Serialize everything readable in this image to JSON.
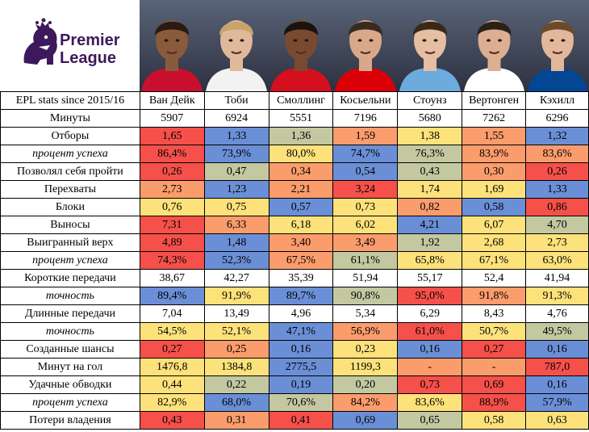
{
  "brand": {
    "line1": "Premier",
    "line2": "League",
    "accent": "#3d195b"
  },
  "title": "EPL stats since 2015/16",
  "players": [
    {
      "name": "Ван Дейк",
      "shirt": "#c8102e",
      "skin": "#8a5a3c",
      "hair": "#2a1a10"
    },
    {
      "name": "Тоби",
      "shirt": "#f2f2f2",
      "skin": "#e0b89a",
      "hair": "#c9a46a"
    },
    {
      "name": "Смоллинг",
      "shirt": "#d40f1e",
      "skin": "#7a4a30",
      "hair": "#1a120c"
    },
    {
      "name": "Косьельни",
      "shirt": "#db0007",
      "skin": "#d9a88a",
      "hair": "#3a2a20"
    },
    {
      "name": "Стоунз",
      "shirt": "#6cabdd",
      "skin": "#e6bea2",
      "hair": "#3a2818"
    },
    {
      "name": "Вертонген",
      "shirt": "#ffffff",
      "skin": "#dcae92",
      "hair": "#2a2018"
    },
    {
      "name": "Кэхилл",
      "shirt": "#034694",
      "skin": "#e3b79b",
      "hair": "#6b4a2a"
    }
  ],
  "colors": {
    "r": "#f5504a",
    "o": "#fb9c6c",
    "y": "#fde27b",
    "g": "#c3c8a1",
    "b": "#6b8fd6",
    "w": "#ffffff",
    "y2": "#f4c86a"
  },
  "rows": [
    {
      "label": "Минуты",
      "italic": false,
      "values": [
        "5907",
        "6924",
        "5551",
        "7196",
        "5680",
        "7262",
        "6296"
      ],
      "colors": [
        "w",
        "w",
        "w",
        "w",
        "w",
        "w",
        "w"
      ]
    },
    {
      "label": "Отборы",
      "italic": false,
      "values": [
        "1,65",
        "1,33",
        "1,36",
        "1,59",
        "1,38",
        "1,55",
        "1,32"
      ],
      "colors": [
        "r",
        "b",
        "g",
        "o",
        "y",
        "o",
        "b"
      ]
    },
    {
      "label": "процент успеха",
      "italic": true,
      "values": [
        "86,4%",
        "73,9%",
        "80,0%",
        "74,7%",
        "76,3%",
        "83,9%",
        "83,6%"
      ],
      "colors": [
        "r",
        "b",
        "y",
        "b",
        "g",
        "o",
        "o"
      ]
    },
    {
      "label": "Позволял себя пройти",
      "italic": false,
      "values": [
        "0,26",
        "0,47",
        "0,34",
        "0,54",
        "0,43",
        "0,30",
        "0,26"
      ],
      "colors": [
        "r",
        "g",
        "o",
        "b",
        "g",
        "o",
        "r"
      ]
    },
    {
      "label": "Перехваты",
      "italic": false,
      "values": [
        "2,73",
        "1,23",
        "2,21",
        "3,24",
        "1,74",
        "1,69",
        "1,33"
      ],
      "colors": [
        "o",
        "b",
        "o",
        "r",
        "y",
        "y",
        "b"
      ]
    },
    {
      "label": "Блоки",
      "italic": false,
      "values": [
        "0,76",
        "0,75",
        "0,57",
        "0,73",
        "0,82",
        "0,58",
        "0,86"
      ],
      "colors": [
        "y",
        "y",
        "b",
        "y",
        "o",
        "b",
        "r"
      ]
    },
    {
      "label": "Выносы",
      "italic": false,
      "values": [
        "7,31",
        "6,33",
        "6,18",
        "6,02",
        "4,21",
        "6,07",
        "4,70"
      ],
      "colors": [
        "r",
        "o",
        "y",
        "y",
        "b",
        "y",
        "g"
      ]
    },
    {
      "label": "Выигранный верх",
      "italic": false,
      "values": [
        "4,89",
        "1,48",
        "3,40",
        "3,49",
        "1,92",
        "2,68",
        "2,73"
      ],
      "colors": [
        "r",
        "b",
        "o",
        "o",
        "g",
        "y",
        "y"
      ]
    },
    {
      "label": "процент успеха",
      "italic": true,
      "values": [
        "74,3%",
        "52,3%",
        "67,5%",
        "61,1%",
        "65,8%",
        "67,1%",
        "63,0%"
      ],
      "colors": [
        "r",
        "b",
        "o",
        "g",
        "y",
        "y",
        "y"
      ]
    },
    {
      "label": "Короткие передачи",
      "italic": false,
      "values": [
        "38,67",
        "42,27",
        "35,39",
        "51,94",
        "55,17",
        "52,4",
        "41,94"
      ],
      "colors": [
        "w",
        "w",
        "w",
        "w",
        "w",
        "w",
        "w"
      ]
    },
    {
      "label": "точность",
      "italic": true,
      "values": [
        "89,4%",
        "91,9%",
        "89,7%",
        "90,8%",
        "95,0%",
        "91,8%",
        "91,3%"
      ],
      "colors": [
        "b",
        "y",
        "b",
        "g",
        "r",
        "o",
        "y"
      ]
    },
    {
      "label": "Длинные передачи",
      "italic": false,
      "values": [
        "7,04",
        "13,49",
        "4,96",
        "5,34",
        "6,29",
        "8,43",
        "4,76"
      ],
      "colors": [
        "w",
        "w",
        "w",
        "w",
        "w",
        "w",
        "w"
      ]
    },
    {
      "label": "точность",
      "italic": true,
      "values": [
        "54,5%",
        "52,1%",
        "47,1%",
        "56,9%",
        "61,0%",
        "50,7%",
        "49,5%"
      ],
      "colors": [
        "y",
        "y",
        "b",
        "o",
        "r",
        "y",
        "g"
      ]
    },
    {
      "label": "Созданные шансы",
      "italic": false,
      "values": [
        "0,27",
        "0,25",
        "0,16",
        "0,23",
        "0,16",
        "0,27",
        "0,16"
      ],
      "colors": [
        "r",
        "o",
        "b",
        "y",
        "b",
        "r",
        "b"
      ]
    },
    {
      "label": "Минут на гол",
      "italic": false,
      "values": [
        "1476,8",
        "1384,8",
        "2775,5",
        "1199,3",
        "-",
        "-",
        "787,0"
      ],
      "colors": [
        "y",
        "y",
        "b",
        "y",
        "o",
        "o",
        "r"
      ]
    },
    {
      "label": "Удачные обводки",
      "italic": false,
      "values": [
        "0,44",
        "0,22",
        "0,19",
        "0,20",
        "0,73",
        "0,69",
        "0,16"
      ],
      "colors": [
        "y",
        "g",
        "b",
        "g",
        "r",
        "r",
        "b"
      ]
    },
    {
      "label": "процент успеха",
      "italic": true,
      "values": [
        "82,9%",
        "68,0%",
        "70,6%",
        "84,2%",
        "83,6%",
        "88,9%",
        "57,9%"
      ],
      "colors": [
        "y",
        "b",
        "g",
        "o",
        "y",
        "r",
        "b"
      ]
    },
    {
      "label": "Потери владения",
      "italic": false,
      "values": [
        "0,43",
        "0,31",
        "0,41",
        "0,69",
        "0,65",
        "0,58",
        "0,63"
      ],
      "colors": [
        "r",
        "o",
        "r",
        "b",
        "g",
        "y",
        "y"
      ]
    }
  ]
}
